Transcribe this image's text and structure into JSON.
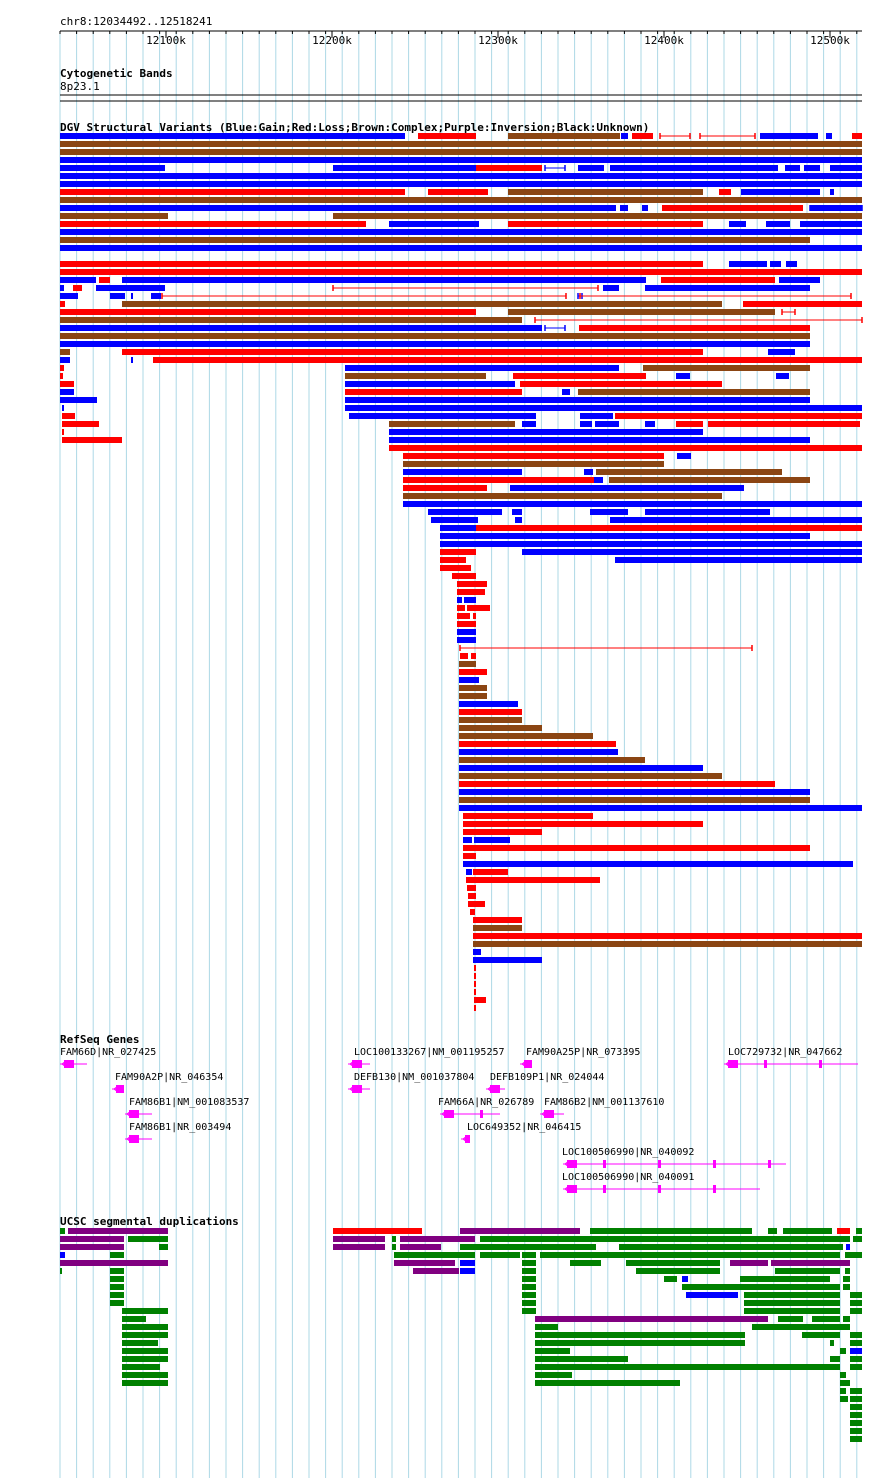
{
  "position_label": "chr8:12034492..12518241",
  "ruler": {
    "start": 12034492,
    "end": 12518241,
    "ticks": [
      "12100k",
      "12200k",
      "12300k",
      "12400k",
      "12500k"
    ]
  },
  "tracks": {
    "cytoband": {
      "title": "Cytogenetic Bands",
      "band": "8p23.1"
    },
    "dgv": {
      "title": "DGV Structural Variants (Blue:Gain;Red:Loss;Brown:Complex;Purple:Inversion;Black:Unknown)"
    },
    "refseq": {
      "title": "RefSeq Genes"
    },
    "segdup": {
      "title": "UCSC segmental duplications"
    }
  },
  "colors": {
    "gain": "#0000ff",
    "loss": "#ff0000",
    "complex": "#8b4513",
    "inversion": "#800080",
    "unknown": "#000000",
    "gene": "#ff00ff",
    "segdup_green": "#008000",
    "grid": "#add8e6"
  },
  "genes": [
    {
      "label": "FAM66D|NR_027425"
    },
    {
      "label": "FAM90A2P|NR_046354"
    },
    {
      "label": "FAM86B1|NM_001083537"
    },
    {
      "label": "FAM86B1|NR_003494"
    },
    {
      "label": "LOC100133267|NM_001195257"
    },
    {
      "label": "DEFB130|NM_001037804"
    },
    {
      "label": "FAM66A|NR_026789"
    },
    {
      "label": "LOC649352|NR_046415"
    },
    {
      "label": "FAM90A25P|NR_073395"
    },
    {
      "label": "DEFB109P1|NR_024044"
    },
    {
      "label": "FAM86B2|NM_001137610"
    },
    {
      "label": "LOC100506990|NR_040092"
    },
    {
      "label": "LOC100506990|NR_040091"
    },
    {
      "label": "LOC729732|NR_047662"
    }
  ]
}
